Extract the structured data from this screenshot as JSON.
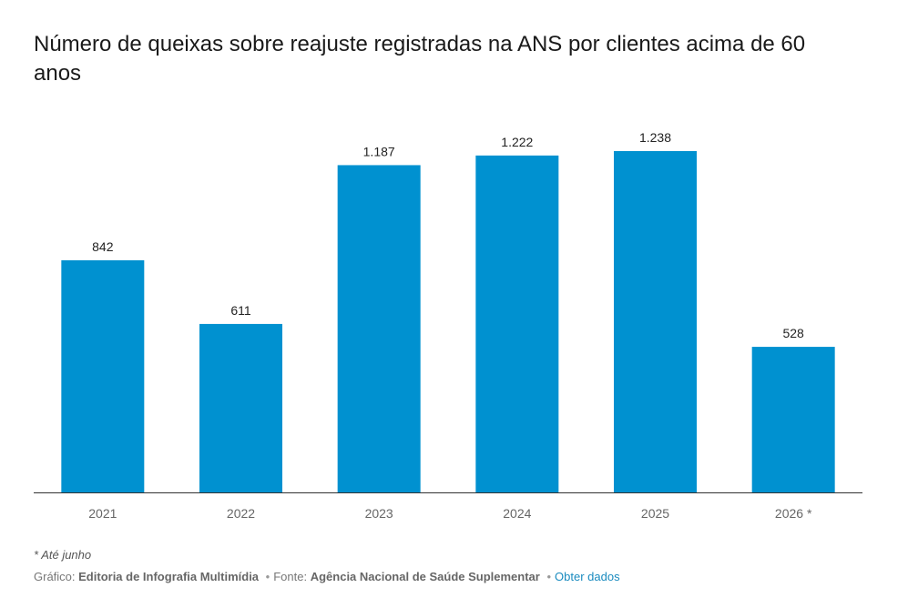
{
  "title": "Número de queixas sobre reajuste registradas na ANS por clientes acima de 60 anos",
  "colors": {
    "bar": "#0091d0",
    "axis": "#333333",
    "tick": "#666666",
    "label": "#222222"
  },
  "chart_data": {
    "type": "bar",
    "title": "Número de queixas sobre reajuste registradas na ANS por clientes acima de 60 anos",
    "categories": [
      "2021",
      "2022",
      "2023",
      "2024",
      "2025",
      "2026 *"
    ],
    "values": [
      842,
      611,
      1187,
      1222,
      1238,
      528
    ],
    "data_labels": [
      "842",
      "611",
      "1.187",
      "1.222",
      "1.238",
      "528"
    ],
    "xlabel": "",
    "ylabel": "",
    "ylim": [
      0,
      1238
    ],
    "grid": false,
    "legend": "none"
  },
  "footnote": "* Até junho",
  "credits": {
    "grafico_label": "Gráfico:",
    "grafico_value": "Editoria de Infografia Multimídia",
    "fonte_label": "Fonte:",
    "fonte_value": "Agência Nacional de Saúde Suplementar",
    "link_label": "Obter dados"
  }
}
